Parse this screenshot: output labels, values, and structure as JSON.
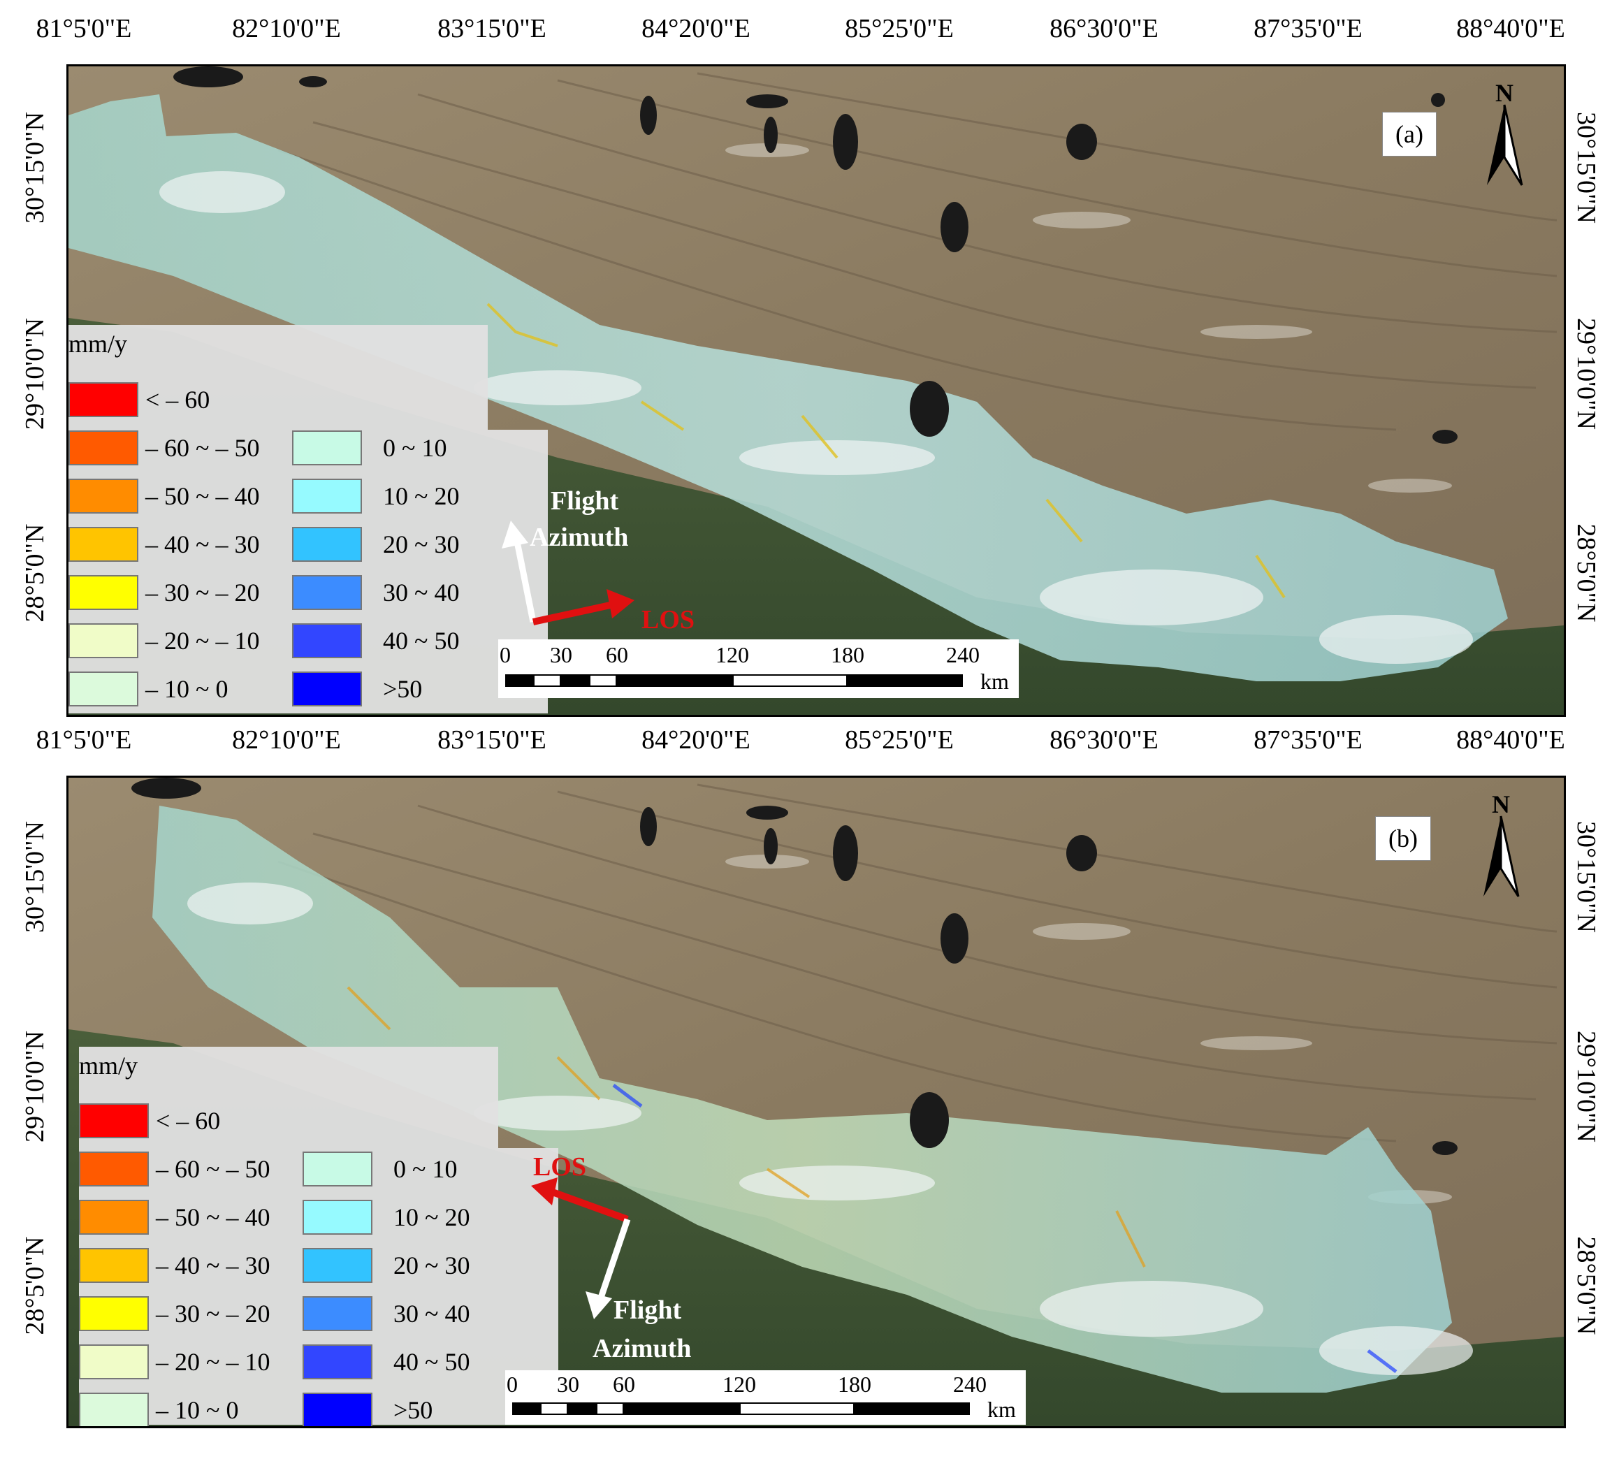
{
  "top_axis": {
    "lon_labels": [
      "81°5'0\"E",
      "82°10'0\"E",
      "83°15'0\"E",
      "84°20'0\"E",
      "85°25'0\"E",
      "86°30'0\"E",
      "87°35'0\"E",
      "88°40'0\"E"
    ]
  },
  "middle_axis": {
    "lon_labels": [
      "81°5'0\"E",
      "82°10'0\"E",
      "83°15'0\"E",
      "84°20'0\"E",
      "85°25'0\"E",
      "86°30'0\"E",
      "87°35'0\"E",
      "88°40'0\"E"
    ]
  },
  "lat_labels": [
    "30°15'0\"N",
    "29°10'0\"N",
    "28°5'0\"N"
  ],
  "panel_a": {
    "label": "(a)",
    "north_label": "N",
    "legend": {
      "unit": "mm/y",
      "items_left": [
        {
          "label": "< – 60",
          "color": "#ff0000"
        },
        {
          "label": "– 60 ~ – 50",
          "color": "#ff5a00"
        },
        {
          "label": "– 50 ~ – 40",
          "color": "#ff8c00"
        },
        {
          "label": "– 40 ~ – 30",
          "color": "#ffc400"
        },
        {
          "label": "– 30 ~ – 20",
          "color": "#ffff00"
        },
        {
          "label": "– 20 ~ – 10",
          "color": "#f0fcc8"
        },
        {
          "label": "– 10 ~ 0",
          "color": "#dcfadc"
        }
      ],
      "items_right": [
        {
          "label": "0 ~ 10",
          "color": "#c8fae6"
        },
        {
          "label": "10 ~ 20",
          "color": "#96faff"
        },
        {
          "label": "20 ~ 30",
          "color": "#32c3ff"
        },
        {
          "label": "30 ~ 40",
          "color": "#3c8cff"
        },
        {
          "label": "40 ~ 50",
          "color": "#3246ff"
        },
        {
          "label": ">50",
          "color": "#0000ff"
        }
      ]
    },
    "scalebar": {
      "ticks": [
        "0",
        "30",
        "60",
        "120",
        "180",
        "240"
      ],
      "unit": "km"
    },
    "flight_label": "Flight",
    "azimuth_label": "Azimuth",
    "los_label": "LOS"
  },
  "panel_b": {
    "label": "(b)",
    "north_label": "N",
    "legend": {
      "unit": "mm/y",
      "items_left": [
        {
          "label": "< – 60",
          "color": "#ff0000"
        },
        {
          "label": "– 60 ~ – 50",
          "color": "#ff5a00"
        },
        {
          "label": "– 50 ~ – 40",
          "color": "#ff8c00"
        },
        {
          "label": "– 40 ~ – 30",
          "color": "#ffc400"
        },
        {
          "label": "– 30 ~ – 20",
          "color": "#ffff00"
        },
        {
          "label": "– 20 ~ – 10",
          "color": "#f0fcc8"
        },
        {
          "label": "– 10 ~ 0",
          "color": "#dcfadc"
        }
      ],
      "items_right": [
        {
          "label": "0 ~ 10",
          "color": "#c8fae6"
        },
        {
          "label": "10 ~ 20",
          "color": "#96faff"
        },
        {
          "label": "20 ~ 30",
          "color": "#32c3ff"
        },
        {
          "label": "30 ~ 40",
          "color": "#3c8cff"
        },
        {
          "label": "40 ~ 50",
          "color": "#3246ff"
        },
        {
          "label": ">50",
          "color": "#0000ff"
        }
      ]
    },
    "scalebar": {
      "ticks": [
        "0",
        "30",
        "60",
        "120",
        "180",
        "240"
      ],
      "unit": "km"
    },
    "flight_label": "Flight",
    "azimuth_label": "Azimuth",
    "los_label": "LOS"
  },
  "colors": {
    "terrain_brown": "#8a7a62",
    "forest_green": "#3d5232",
    "glacier_cyan": "#9fd8d0",
    "los_red": "#e01010",
    "flight_white": "#ffffff"
  }
}
